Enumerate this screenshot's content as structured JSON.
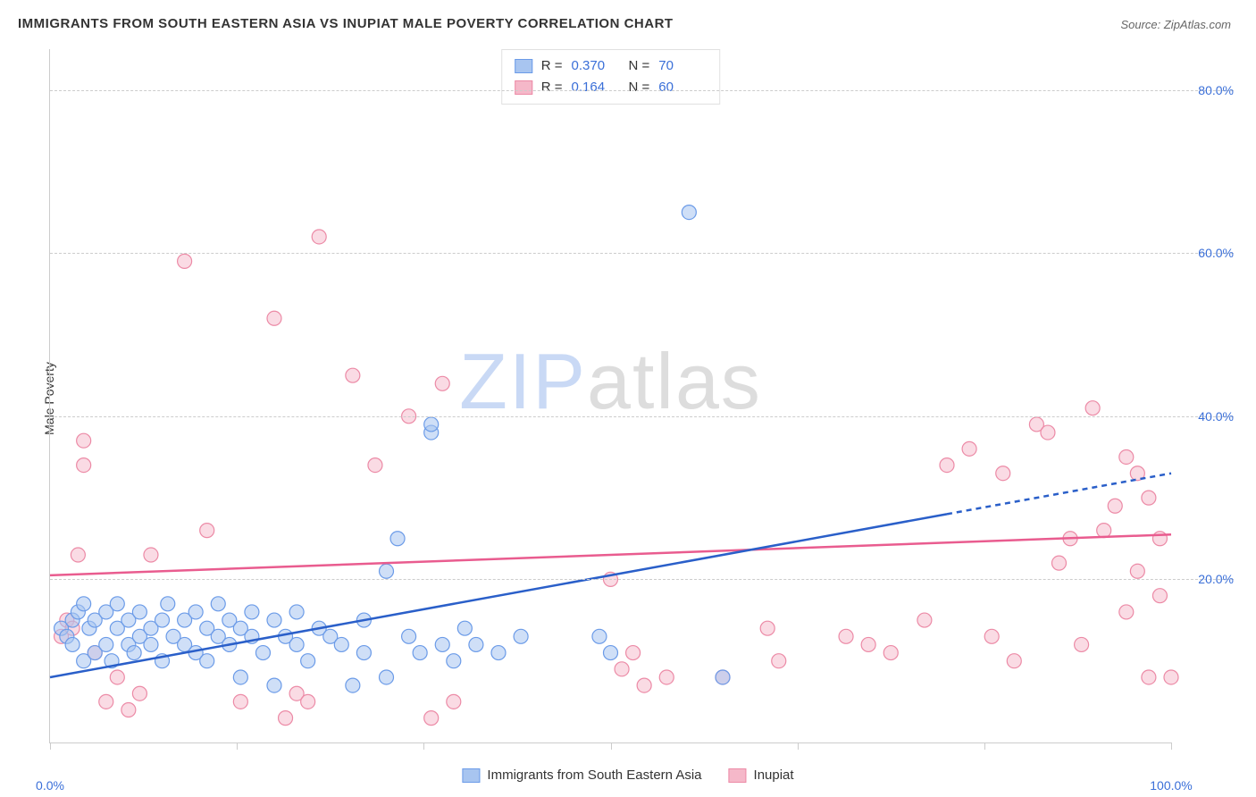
{
  "title": "IMMIGRANTS FROM SOUTH EASTERN ASIA VS INUPIAT MALE POVERTY CORRELATION CHART",
  "source": "Source: ZipAtlas.com",
  "y_axis_label": "Male Poverty",
  "watermark_zip": "ZIP",
  "watermark_atlas": "atlas",
  "chart": {
    "type": "scatter",
    "xlim": [
      0,
      100
    ],
    "ylim": [
      0,
      85
    ],
    "y_ticks": [
      20,
      40,
      60,
      80
    ],
    "y_tick_labels": [
      "20.0%",
      "40.0%",
      "60.0%",
      "80.0%"
    ],
    "x_ticks": [
      0,
      16.67,
      33.33,
      50,
      66.67,
      83.33,
      100
    ],
    "x_min_label": "0.0%",
    "x_max_label": "100.0%",
    "grid_color": "#cccccc",
    "background_color": "#ffffff",
    "series": [
      {
        "name": "Immigrants from South Eastern Asia",
        "color_fill": "#a8c5f0",
        "color_stroke": "#6b9be8",
        "fill_opacity": 0.55,
        "marker_radius": 8,
        "r_value": "0.370",
        "n_value": "70",
        "trend": {
          "x1": 0,
          "y1": 8,
          "x2": 80,
          "y2": 28,
          "dash_x2": 100,
          "dash_y2": 33,
          "color": "#2a5fc9",
          "width": 2.5
        },
        "points": [
          [
            1,
            14
          ],
          [
            1.5,
            13
          ],
          [
            2,
            15
          ],
          [
            2,
            12
          ],
          [
            2.5,
            16
          ],
          [
            3,
            10
          ],
          [
            3,
            17
          ],
          [
            3.5,
            14
          ],
          [
            4,
            11
          ],
          [
            4,
            15
          ],
          [
            5,
            12
          ],
          [
            5,
            16
          ],
          [
            5.5,
            10
          ],
          [
            6,
            14
          ],
          [
            6,
            17
          ],
          [
            7,
            12
          ],
          [
            7,
            15
          ],
          [
            7.5,
            11
          ],
          [
            8,
            13
          ],
          [
            8,
            16
          ],
          [
            9,
            14
          ],
          [
            9,
            12
          ],
          [
            10,
            15
          ],
          [
            10,
            10
          ],
          [
            10.5,
            17
          ],
          [
            11,
            13
          ],
          [
            12,
            12
          ],
          [
            12,
            15
          ],
          [
            13,
            11
          ],
          [
            13,
            16
          ],
          [
            14,
            14
          ],
          [
            14,
            10
          ],
          [
            15,
            13
          ],
          [
            15,
            17
          ],
          [
            16,
            12
          ],
          [
            16,
            15
          ],
          [
            17,
            8
          ],
          [
            17,
            14
          ],
          [
            18,
            13
          ],
          [
            18,
            16
          ],
          [
            19,
            11
          ],
          [
            20,
            15
          ],
          [
            20,
            7
          ],
          [
            21,
            13
          ],
          [
            22,
            12
          ],
          [
            22,
            16
          ],
          [
            23,
            10
          ],
          [
            24,
            14
          ],
          [
            25,
            13
          ],
          [
            26,
            12
          ],
          [
            27,
            7
          ],
          [
            28,
            11
          ],
          [
            28,
            15
          ],
          [
            30,
            8
          ],
          [
            30,
            21
          ],
          [
            31,
            25
          ],
          [
            32,
            13
          ],
          [
            33,
            11
          ],
          [
            34,
            38
          ],
          [
            34,
            39
          ],
          [
            35,
            12
          ],
          [
            36,
            10
          ],
          [
            37,
            14
          ],
          [
            38,
            12
          ],
          [
            40,
            11
          ],
          [
            42,
            13
          ],
          [
            49,
            13
          ],
          [
            50,
            11
          ],
          [
            57,
            65
          ],
          [
            60,
            8
          ]
        ]
      },
      {
        "name": "Inupiat",
        "color_fill": "#f5b8c9",
        "color_stroke": "#ec8aa6",
        "fill_opacity": 0.5,
        "marker_radius": 8,
        "r_value": "0.164",
        "n_value": "60",
        "trend": {
          "x1": 0,
          "y1": 20.5,
          "x2": 100,
          "y2": 25.5,
          "color": "#e95c8f",
          "width": 2.5
        },
        "points": [
          [
            1,
            13
          ],
          [
            1.5,
            15
          ],
          [
            2,
            14
          ],
          [
            2.5,
            23
          ],
          [
            3,
            37
          ],
          [
            3,
            34
          ],
          [
            4,
            11
          ],
          [
            5,
            5
          ],
          [
            6,
            8
          ],
          [
            7,
            4
          ],
          [
            8,
            6
          ],
          [
            9,
            23
          ],
          [
            12,
            59
          ],
          [
            14,
            26
          ],
          [
            17,
            5
          ],
          [
            20,
            52
          ],
          [
            21,
            3
          ],
          [
            22,
            6
          ],
          [
            23,
            5
          ],
          [
            24,
            62
          ],
          [
            27,
            45
          ],
          [
            29,
            34
          ],
          [
            32,
            40
          ],
          [
            34,
            3
          ],
          [
            35,
            44
          ],
          [
            36,
            5
          ],
          [
            50,
            20
          ],
          [
            51,
            9
          ],
          [
            52,
            11
          ],
          [
            53,
            7
          ],
          [
            55,
            8
          ],
          [
            60,
            8
          ],
          [
            64,
            14
          ],
          [
            65,
            10
          ],
          [
            71,
            13
          ],
          [
            73,
            12
          ],
          [
            75,
            11
          ],
          [
            78,
            15
          ],
          [
            80,
            34
          ],
          [
            82,
            36
          ],
          [
            84,
            13
          ],
          [
            85,
            33
          ],
          [
            86,
            10
          ],
          [
            88,
            39
          ],
          [
            89,
            38
          ],
          [
            90,
            22
          ],
          [
            91,
            25
          ],
          [
            92,
            12
          ],
          [
            93,
            41
          ],
          [
            94,
            26
          ],
          [
            95,
            29
          ],
          [
            96,
            35
          ],
          [
            96,
            16
          ],
          [
            97,
            33
          ],
          [
            97,
            21
          ],
          [
            98,
            30
          ],
          [
            98,
            8
          ],
          [
            99,
            25
          ],
          [
            99,
            18
          ],
          [
            100,
            8
          ]
        ]
      }
    ]
  },
  "legend_top": {
    "r_label": "R =",
    "n_label": "N ="
  },
  "legend_bottom": {
    "series1_label": "Immigrants from South Eastern Asia",
    "series2_label": "Inupiat"
  }
}
